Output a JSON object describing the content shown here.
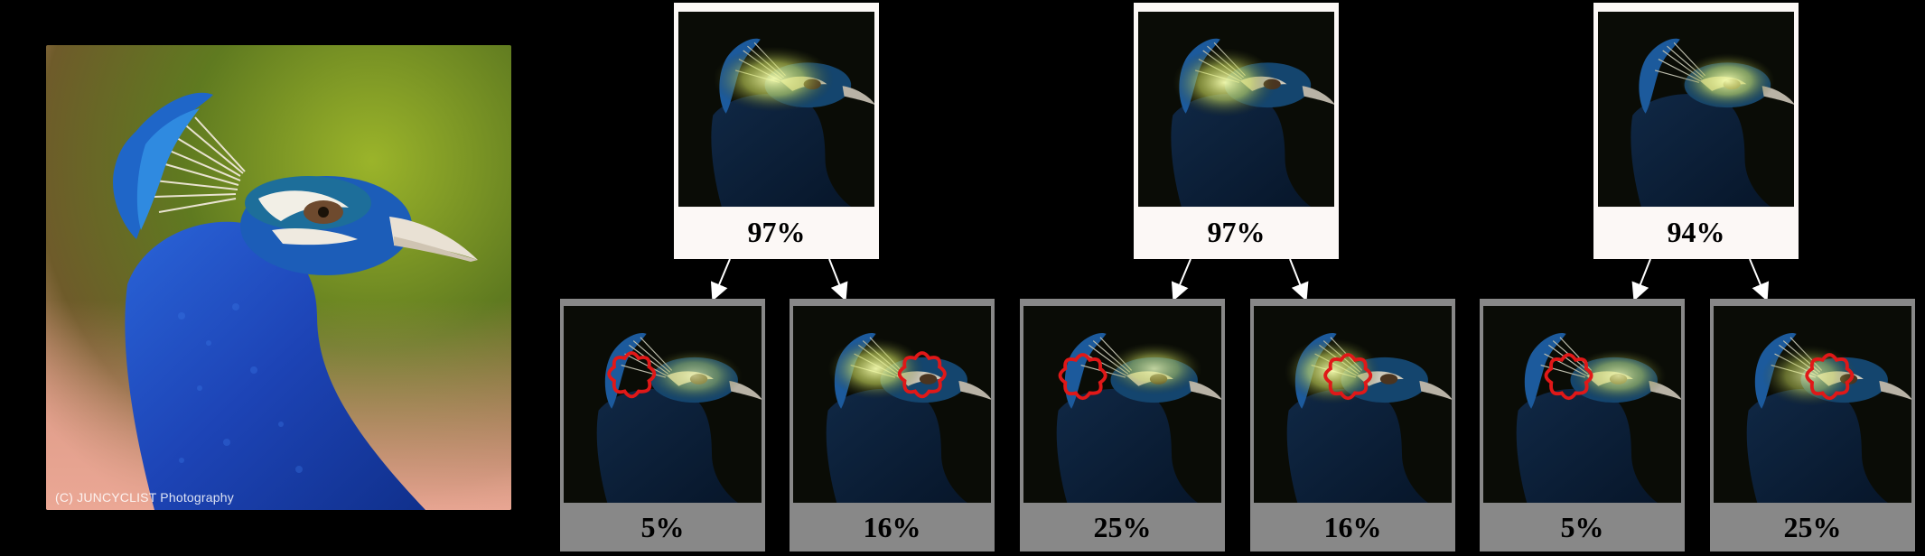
{
  "original": {
    "watermark": "(C) JUNCYCLIST Photography"
  },
  "groups": [
    {
      "top_percent": "97%",
      "top_glow": "crest",
      "children": [
        {
          "percent": "5%",
          "patch": "cheek-left"
        },
        {
          "percent": "16%",
          "patch": "crown-right"
        }
      ]
    },
    {
      "top_percent": "97%",
      "top_glow": "crest",
      "children": [
        {
          "percent": "25%",
          "patch": "cheek-left"
        },
        {
          "percent": "16%",
          "patch": "neck"
        }
      ]
    },
    {
      "top_percent": "94%",
      "top_glow": "eye",
      "children": [
        {
          "percent": "5%",
          "patch": "cheek-left"
        },
        {
          "percent": "25%",
          "patch": "eye"
        }
      ]
    }
  ],
  "colors": {
    "background": "#000000",
    "top_card": "#fcf8f6",
    "bottom_card": "#888888",
    "patch_outline": "#e01818",
    "arrow": "#ffffff"
  }
}
